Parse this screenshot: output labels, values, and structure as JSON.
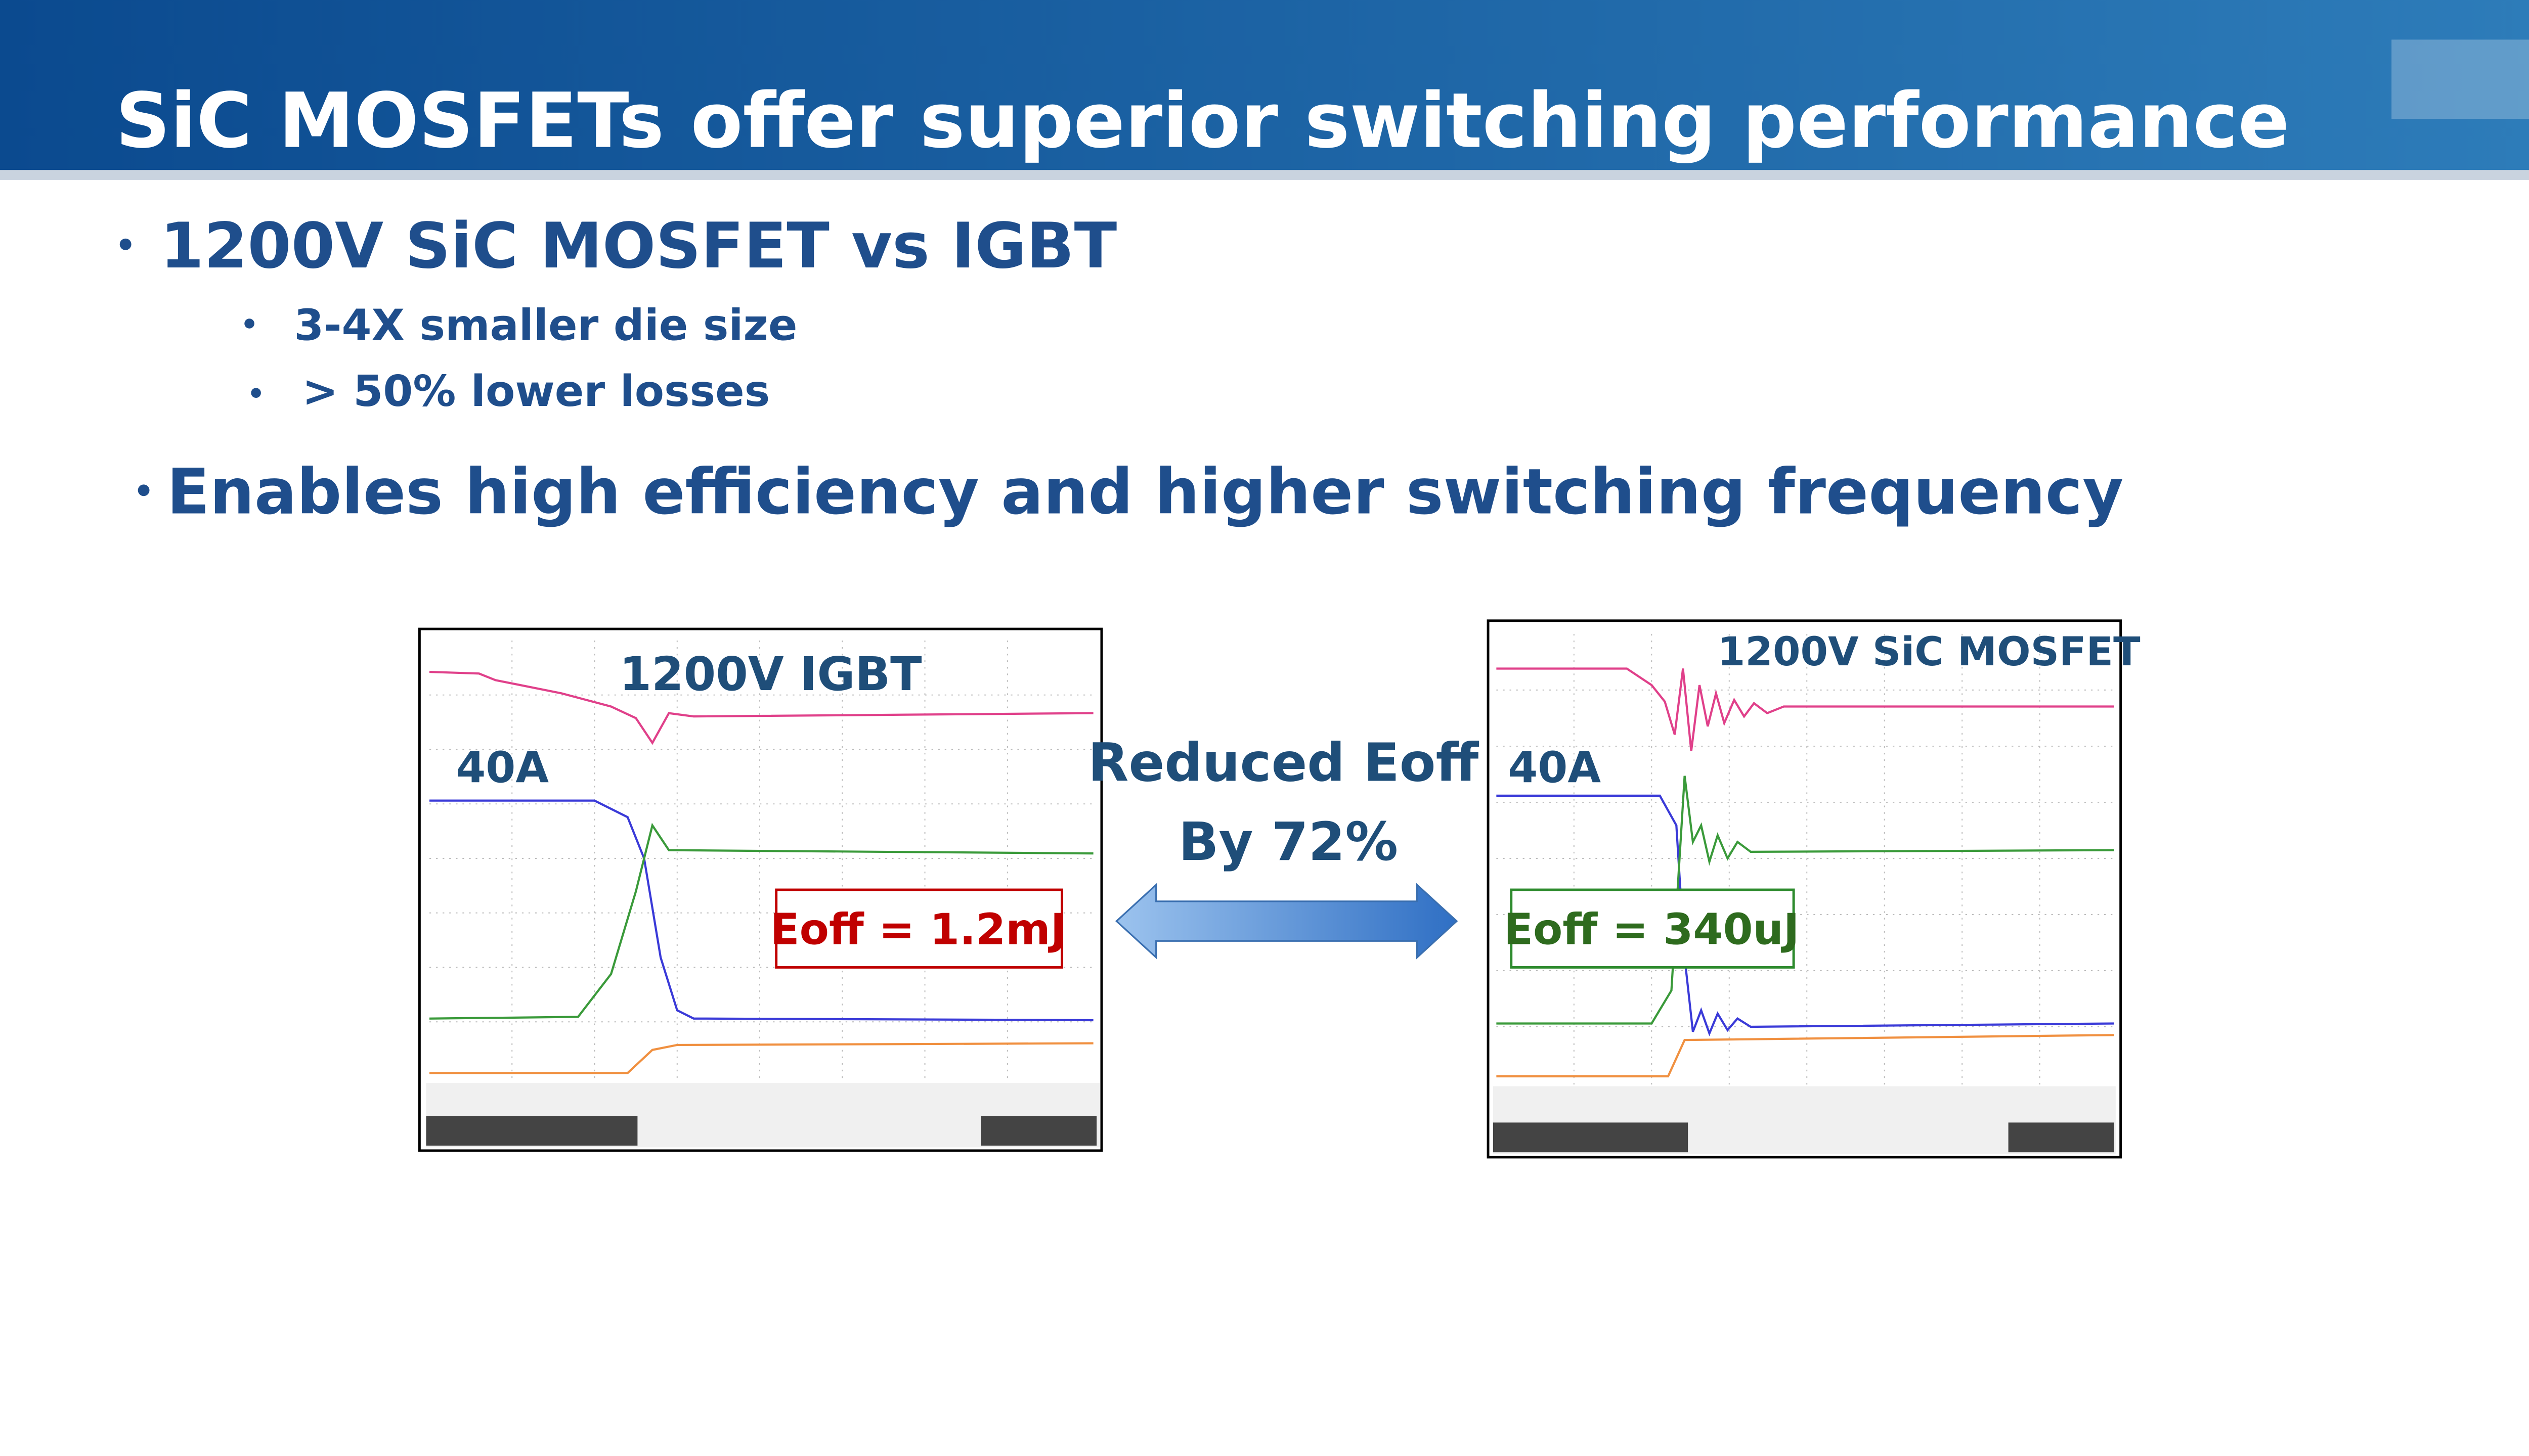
{
  "header": {
    "title": "SiC MOSFETs offer superior switching performance"
  },
  "bullets": [
    {
      "text": "1200V SiC MOSFET vs IGBT",
      "sub": [
        "3-4X smaller die size",
        "> 50% lower losses"
      ]
    },
    {
      "text": "Enables high efficiency and higher switching frequency"
    }
  ],
  "comparison": {
    "center": [
      "Reduced Eoff",
      "By 72%"
    ],
    "panels": [
      {
        "label": "1200V IGBT",
        "current": "40A",
        "eoff": "Eoff = 1.2mJ"
      },
      {
        "label": "1200V SiC MOSFET",
        "current": "40A",
        "eoff": "Eoff = 340uJ"
      }
    ]
  }
}
